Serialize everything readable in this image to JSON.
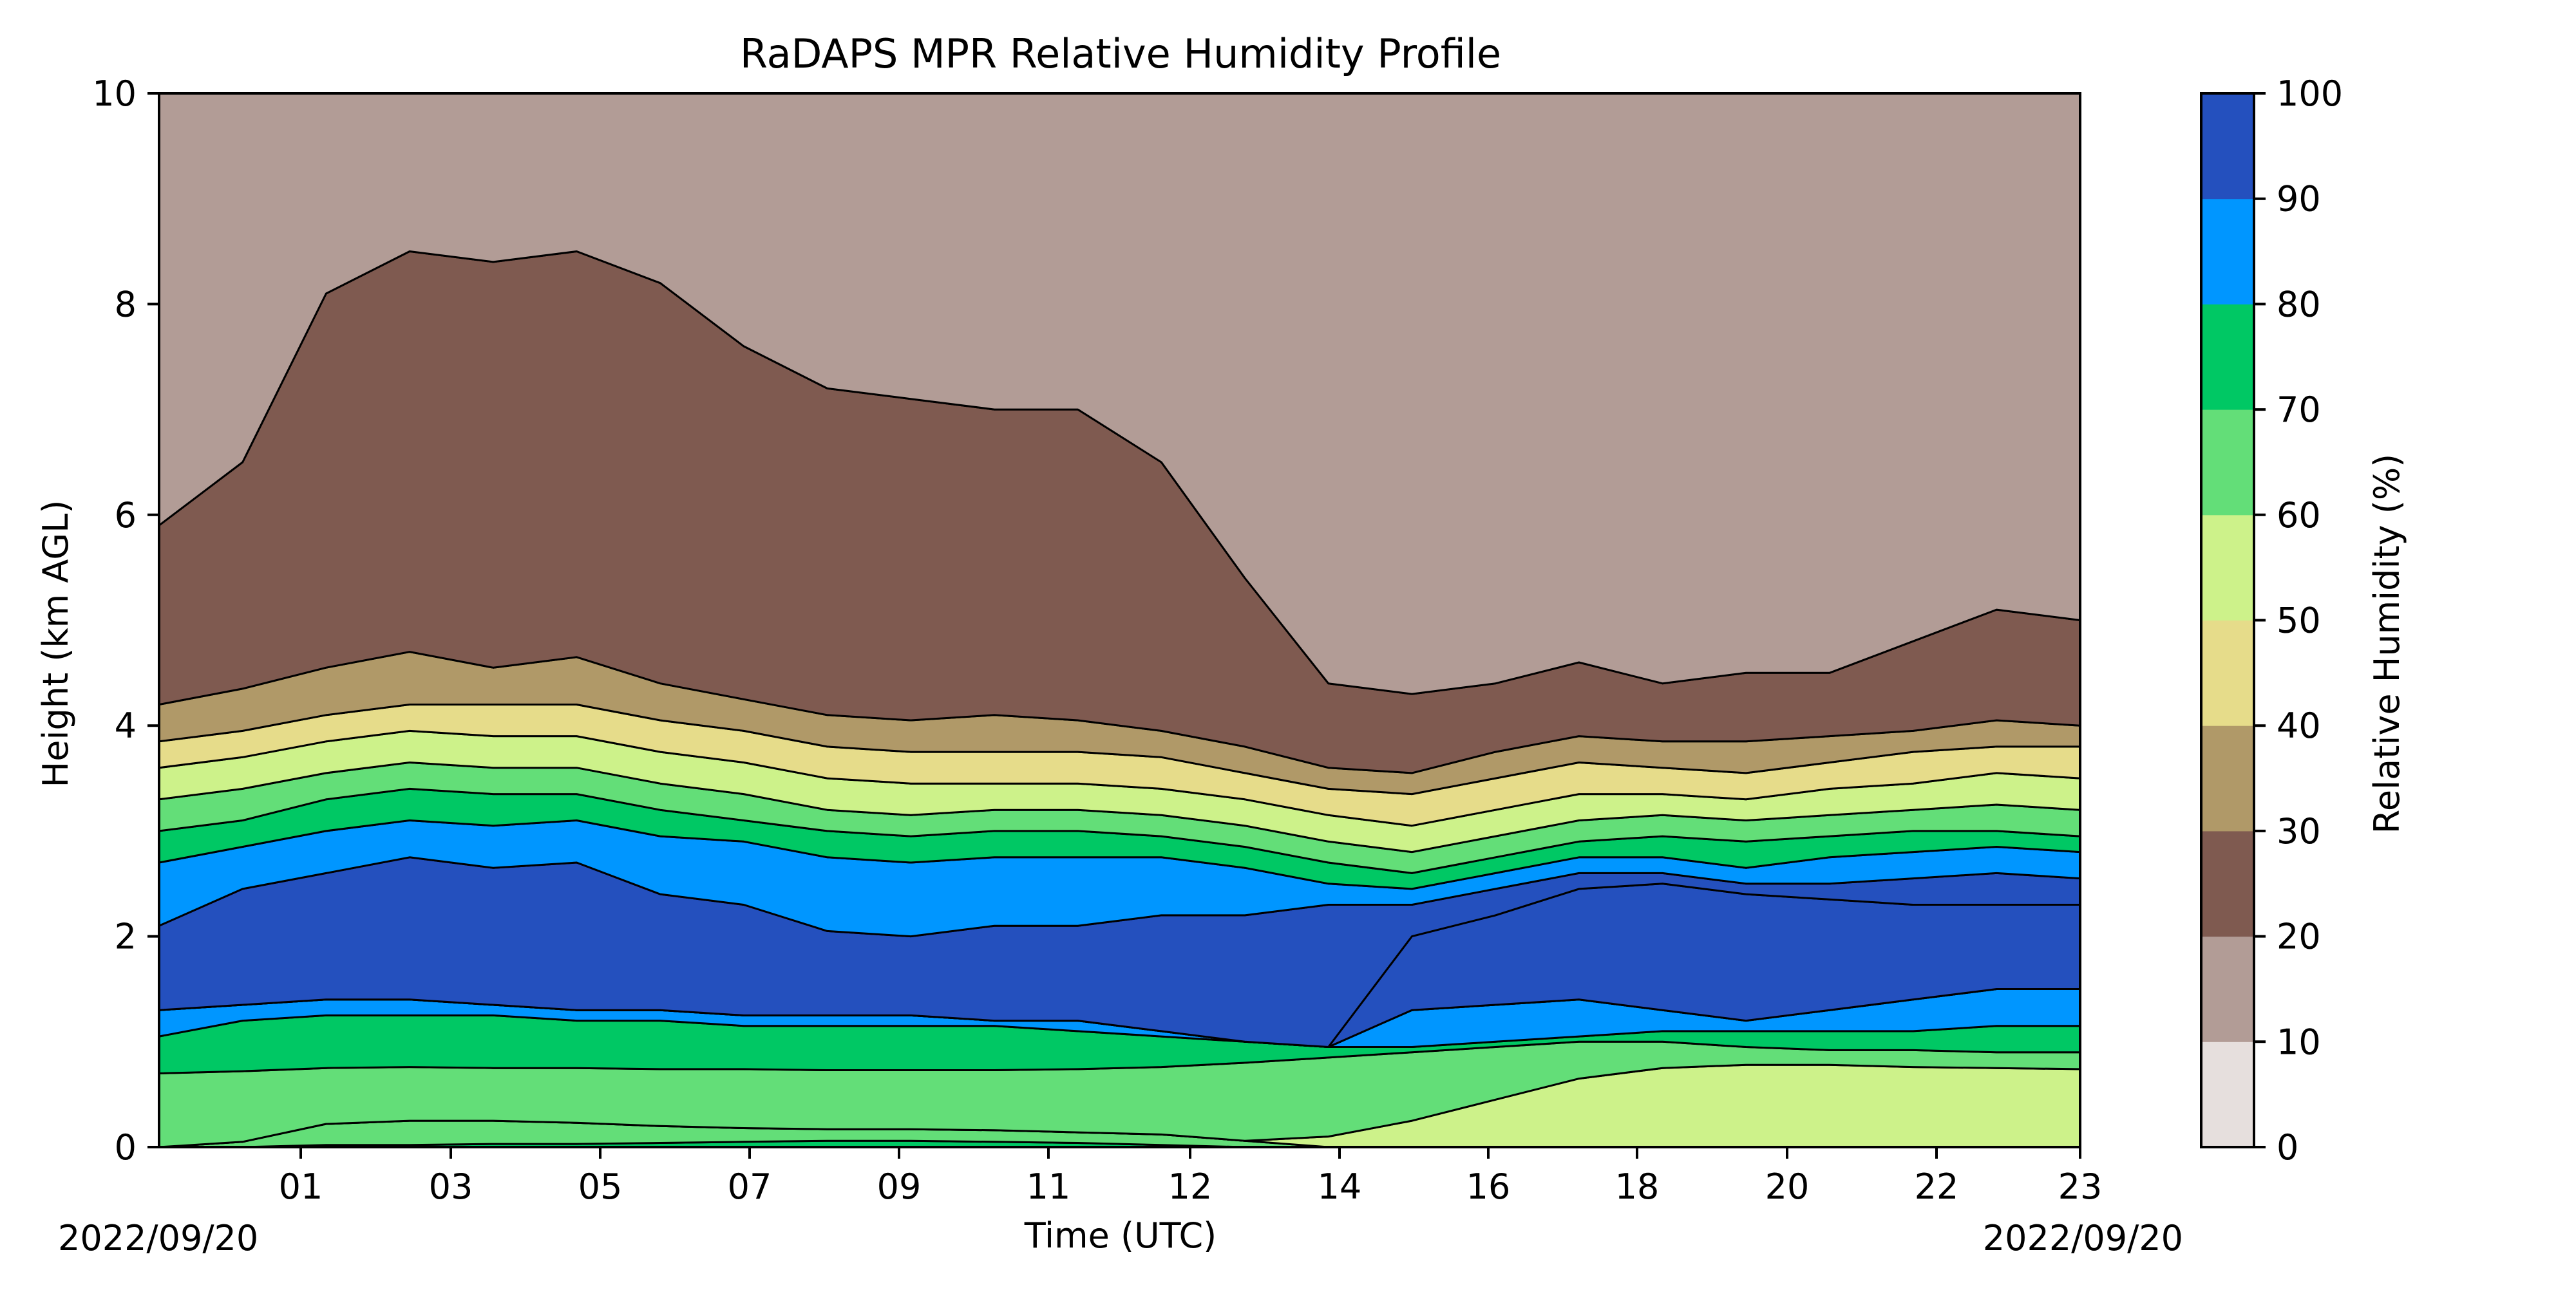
{
  "chart_data": {
    "type": "contour",
    "title": "RaDAPS MPR Relative Humidity Profile",
    "xlabel": "Time (UTC)",
    "ylabel": "Height (km AGL)",
    "start_date_label": "2022/09/20",
    "end_date_label": "2022/09/20",
    "x_tick_labels": [
      "01",
      "03",
      "05",
      "07",
      "09",
      "11",
      "12",
      "14",
      "16",
      "18",
      "20",
      "22",
      "23"
    ],
    "y_ticks": [
      0,
      2,
      4,
      6,
      8,
      10
    ],
    "ylim": [
      0,
      10
    ],
    "colorbar": {
      "label": "Relative Humidity (%)",
      "levels": [
        0,
        10,
        20,
        30,
        40,
        50,
        60,
        70,
        80,
        90,
        100
      ],
      "colors": [
        "#e6dfdd",
        "#b29c96",
        "#7f5a50",
        "#b09968",
        "#e6dc8a",
        "#cdf28a",
        "#63de78",
        "#00c864",
        "#0096ff",
        "#2450be"
      ]
    },
    "profiles": {
      "time_hours": [
        0.0,
        1.0,
        2.0,
        3.0,
        4.0,
        5.0,
        6.0,
        7.0,
        8.0,
        9.0,
        10.0,
        11.0,
        12.0,
        13.0,
        14.0,
        15.0,
        16.0,
        17.0,
        18.0,
        19.0,
        20.0,
        21.0,
        22.0,
        23.0
      ],
      "boundaries_km": [
        {
          "rh_from": 70,
          "rh_to": 80,
          "heights": [
            0.0,
            0.0,
            0.02,
            0.02,
            0.03,
            0.03,
            0.04,
            0.05,
            0.06,
            0.06,
            0.05,
            0.04,
            0.02,
            0.0,
            0.0,
            0.0,
            0.0,
            0.0,
            0.0,
            0.0,
            0.0,
            0.0,
            0.0,
            0.0
          ]
        },
        {
          "rh_from": 60,
          "rh_to": 70,
          "heights": [
            0.0,
            0.05,
            0.22,
            0.25,
            0.25,
            0.23,
            0.2,
            0.18,
            0.17,
            0.17,
            0.16,
            0.14,
            0.12,
            0.06,
            0.0,
            0.0,
            0.0,
            0.0,
            0.0,
            0.0,
            0.0,
            0.0,
            0.0,
            0.0
          ]
        },
        {
          "rh_from": 50,
          "rh_to": 60,
          "heights": [
            0.0,
            0.0,
            0.0,
            0.0,
            0.0,
            0.0,
            0.0,
            0.0,
            0.0,
            0.0,
            0.0,
            0.0,
            0.0,
            0.0,
            0.1,
            0.25,
            0.45,
            0.65,
            0.75,
            0.78,
            0.78,
            0.76,
            0.75,
            0.74
          ]
        },
        {
          "rh_from": 60,
          "rh_to": 70,
          "heights": [
            0.7,
            0.72,
            0.75,
            0.76,
            0.75,
            0.75,
            0.74,
            0.74,
            0.73,
            0.73,
            0.73,
            0.74,
            0.76,
            0.8,
            0.85,
            0.9,
            0.95,
            1.0,
            1.0,
            0.95,
            0.92,
            0.92,
            0.9,
            0.9
          ]
        },
        {
          "rh_from": 70,
          "rh_to": 80,
          "heights": [
            1.05,
            1.2,
            1.25,
            1.25,
            1.25,
            1.2,
            1.2,
            1.15,
            1.15,
            1.15,
            1.15,
            1.1,
            1.05,
            1.0,
            0.95,
            0.95,
            1.0,
            1.05,
            1.1,
            1.1,
            1.1,
            1.1,
            1.15,
            1.15
          ]
        },
        {
          "rh_from": 80,
          "rh_to": 90,
          "heights": [
            1.3,
            1.35,
            1.4,
            1.4,
            1.35,
            1.3,
            1.3,
            1.25,
            1.25,
            1.25,
            1.2,
            1.2,
            1.1,
            1.0,
            0.9,
            1.3,
            1.35,
            1.4,
            1.3,
            1.2,
            1.3,
            1.4,
            1.5,
            1.5
          ]
        },
        {
          "rh_from": 90,
          "rh_to": 100,
          "heights": [
            1.3,
            1.35,
            1.4,
            1.4,
            1.35,
            1.3,
            1.3,
            1.25,
            1.25,
            1.25,
            1.2,
            1.2,
            1.1,
            1.0,
            0.9,
            1.3,
            1.35,
            1.4,
            1.3,
            1.2,
            1.3,
            1.4,
            1.5,
            1.5
          ]
        },
        {
          "rh_from": 100,
          "rh_to": 90,
          "heights": [
            1.3,
            1.35,
            1.4,
            1.4,
            1.35,
            1.3,
            1.3,
            1.25,
            1.25,
            1.25,
            1.2,
            1.2,
            1.1,
            1.0,
            0.9,
            2.0,
            2.2,
            2.45,
            2.5,
            2.4,
            2.35,
            2.3,
            2.3,
            2.3
          ]
        },
        {
          "rh_from": 90,
          "rh_to": 80,
          "heights": [
            2.1,
            2.45,
            2.6,
            2.75,
            2.65,
            2.7,
            2.4,
            2.3,
            2.05,
            2.0,
            2.1,
            2.1,
            2.2,
            2.2,
            2.3,
            2.3,
            2.45,
            2.6,
            2.6,
            2.5,
            2.5,
            2.55,
            2.6,
            2.55
          ]
        },
        {
          "rh_from": 80,
          "rh_to": 70,
          "heights": [
            2.7,
            2.85,
            3.0,
            3.1,
            3.05,
            3.1,
            2.95,
            2.9,
            2.75,
            2.7,
            2.75,
            2.75,
            2.75,
            2.65,
            2.5,
            2.45,
            2.6,
            2.75,
            2.75,
            2.65,
            2.75,
            2.8,
            2.85,
            2.8
          ]
        },
        {
          "rh_from": 70,
          "rh_to": 60,
          "heights": [
            3.0,
            3.1,
            3.3,
            3.4,
            3.35,
            3.35,
            3.2,
            3.1,
            3.0,
            2.95,
            3.0,
            3.0,
            2.95,
            2.85,
            2.7,
            2.6,
            2.75,
            2.9,
            2.95,
            2.9,
            2.95,
            3.0,
            3.0,
            2.95
          ]
        },
        {
          "rh_from": 60,
          "rh_to": 50,
          "heights": [
            3.3,
            3.4,
            3.55,
            3.65,
            3.6,
            3.6,
            3.45,
            3.35,
            3.2,
            3.15,
            3.2,
            3.2,
            3.15,
            3.05,
            2.9,
            2.8,
            2.95,
            3.1,
            3.15,
            3.1,
            3.15,
            3.2,
            3.25,
            3.2
          ]
        },
        {
          "rh_from": 50,
          "rh_to": 40,
          "heights": [
            3.6,
            3.7,
            3.85,
            3.95,
            3.9,
            3.9,
            3.75,
            3.65,
            3.5,
            3.45,
            3.45,
            3.45,
            3.4,
            3.3,
            3.15,
            3.05,
            3.2,
            3.35,
            3.35,
            3.3,
            3.4,
            3.45,
            3.55,
            3.5
          ]
        },
        {
          "rh_from": 40,
          "rh_to": 30,
          "heights": [
            3.85,
            3.95,
            4.1,
            4.2,
            4.2,
            4.2,
            4.05,
            3.95,
            3.8,
            3.75,
            3.75,
            3.75,
            3.7,
            3.55,
            3.4,
            3.35,
            3.5,
            3.65,
            3.6,
            3.55,
            3.65,
            3.75,
            3.8,
            3.8
          ]
        },
        {
          "rh_from": 30,
          "rh_to": 20,
          "heights": [
            4.2,
            4.35,
            4.55,
            4.7,
            4.55,
            4.65,
            4.4,
            4.25,
            4.1,
            4.05,
            4.1,
            4.05,
            3.95,
            3.8,
            3.6,
            3.55,
            3.75,
            3.9,
            3.85,
            3.85,
            3.9,
            3.95,
            4.05,
            4.0
          ]
        },
        {
          "rh_from": 20,
          "rh_to": 10,
          "heights": [
            5.9,
            6.5,
            8.1,
            8.5,
            8.4,
            8.5,
            8.2,
            7.6,
            7.2,
            7.1,
            7.0,
            7.0,
            6.5,
            5.4,
            4.4,
            4.3,
            4.4,
            4.6,
            4.4,
            4.5,
            4.5,
            4.8,
            5.1,
            5.0
          ]
        }
      ]
    }
  }
}
